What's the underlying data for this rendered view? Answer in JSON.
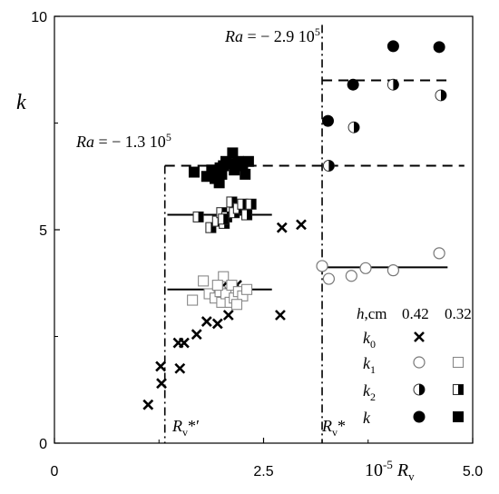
{
  "chart_data": {
    "type": "scatter",
    "title": "",
    "xlabel": {
      "prefix": "10",
      "exponent": "-5",
      "symbol": "R",
      "subscript": "v"
    },
    "ylabel": "k",
    "xlim": [
      0,
      5.0
    ],
    "ylim": [
      0,
      10
    ],
    "x_ticks": [
      {
        "value": 0,
        "label": "0"
      },
      {
        "value": 2.5,
        "label": "2.5"
      },
      {
        "value": 5.0,
        "label": "5.0"
      }
    ],
    "y_ticks": [
      {
        "value": 0,
        "label": "0"
      },
      {
        "value": 5,
        "label": "5"
      },
      {
        "value": 10,
        "label": "10"
      }
    ],
    "grid": false,
    "annotations": {
      "ra_left": {
        "prefix": "Ra",
        "text": " = − 1.3 10",
        "exponent": "5"
      },
      "ra_right": {
        "prefix": "Ra",
        "text": " = − 2.9 10",
        "exponent": "5"
      },
      "rv_left": {
        "symbol": "R",
        "subscript": "v",
        "suffix": "*′"
      },
      "rv_right": {
        "symbol": "R",
        "subscript": "v",
        "suffix": "*"
      }
    },
    "vertical_lines": [
      {
        "name": "Rv*'",
        "x": 1.32
      },
      {
        "name": "Rv*",
        "x": 3.2
      }
    ],
    "dashed_lines": [
      {
        "x": [
          1.32,
          4.9
        ],
        "y": 6.5
      },
      {
        "x": [
          3.2,
          4.7
        ],
        "y": 8.5
      }
    ],
    "solid_lines": [
      {
        "x": [
          1.35,
          2.6
        ],
        "y": 3.6
      },
      {
        "x": [
          1.35,
          2.6
        ],
        "y": 5.35
      },
      {
        "x": [
          3.2,
          4.7
        ],
        "y": 4.12
      }
    ],
    "legend": {
      "placement": "bottom-right",
      "header": {
        "symbol": "h",
        "unit": ",cm",
        "col1": "0.42",
        "col2": "0.32"
      },
      "rows": [
        {
          "symbol": "k",
          "subscript": "0",
          "marker1": "x",
          "marker2": ""
        },
        {
          "symbol": "k",
          "subscript": "1",
          "marker1": "circle-open",
          "marker2": "square-open"
        },
        {
          "symbol": "k",
          "subscript": "2",
          "marker1": "circle-half",
          "marker2": "square-half"
        },
        {
          "symbol": "k",
          "subscript": "",
          "marker1": "circle-filled",
          "marker2": "square-filled"
        }
      ]
    },
    "series": [
      {
        "name": "k0 h=0.42",
        "marker": "x",
        "points": [
          [
            1.12,
            0.9
          ],
          [
            1.28,
            1.4
          ],
          [
            1.27,
            1.8
          ],
          [
            1.5,
            1.75
          ],
          [
            1.48,
            2.35
          ],
          [
            1.55,
            2.35
          ],
          [
            1.7,
            2.55
          ],
          [
            1.82,
            2.85
          ],
          [
            1.95,
            2.8
          ],
          [
            2.08,
            3.0
          ],
          [
            2.0,
            3.65
          ],
          [
            2.08,
            3.55
          ],
          [
            2.18,
            3.7
          ],
          [
            2.7,
            3.0
          ],
          [
            2.72,
            5.05
          ],
          [
            2.95,
            5.12
          ]
        ]
      },
      {
        "name": "k1 h=0.32",
        "marker": "square-open",
        "points": [
          [
            1.65,
            3.35
          ],
          [
            1.78,
            3.8
          ],
          [
            1.85,
            3.5
          ],
          [
            1.92,
            3.4
          ],
          [
            1.98,
            3.55
          ],
          [
            2.0,
            3.3
          ],
          [
            2.02,
            3.9
          ],
          [
            2.05,
            3.5
          ],
          [
            2.1,
            3.3
          ],
          [
            2.12,
            3.7
          ],
          [
            2.15,
            3.4
          ],
          [
            2.2,
            3.55
          ],
          [
            2.25,
            3.45
          ],
          [
            2.3,
            3.6
          ],
          [
            1.95,
            3.7
          ],
          [
            2.18,
            3.25
          ]
        ]
      },
      {
        "name": "k2 h=0.32",
        "marker": "square-half",
        "points": [
          [
            1.72,
            5.3
          ],
          [
            1.87,
            5.05
          ],
          [
            1.95,
            5.2
          ],
          [
            2.0,
            5.4
          ],
          [
            2.03,
            5.15
          ],
          [
            2.06,
            5.3
          ],
          [
            2.12,
            5.65
          ],
          [
            2.15,
            5.4
          ],
          [
            2.2,
            5.5
          ],
          [
            2.25,
            5.6
          ],
          [
            2.3,
            5.35
          ],
          [
            2.35,
            5.6
          ],
          [
            2.02,
            5.25
          ]
        ]
      },
      {
        "name": "k h=0.32",
        "marker": "square-filled",
        "points": [
          [
            1.67,
            6.35
          ],
          [
            1.82,
            6.25
          ],
          [
            1.88,
            6.4
          ],
          [
            1.92,
            6.2
          ],
          [
            1.97,
            6.1
          ],
          [
            2.0,
            6.3
          ],
          [
            2.02,
            6.5
          ],
          [
            2.05,
            6.6
          ],
          [
            2.1,
            6.55
          ],
          [
            2.13,
            6.8
          ],
          [
            2.15,
            6.4
          ],
          [
            2.2,
            6.6
          ],
          [
            2.25,
            6.5
          ],
          [
            2.28,
            6.3
          ],
          [
            2.32,
            6.6
          ],
          [
            1.98,
            6.45
          ]
        ]
      },
      {
        "name": "k1 h=0.42",
        "marker": "circle-open",
        "points": [
          [
            3.2,
            4.15
          ],
          [
            3.28,
            3.85
          ],
          [
            3.55,
            3.92
          ],
          [
            3.72,
            4.1
          ],
          [
            4.05,
            4.05
          ],
          [
            4.6,
            4.45
          ]
        ]
      },
      {
        "name": "k2 h=0.42",
        "marker": "circle-half",
        "points": [
          [
            3.28,
            6.5
          ],
          [
            3.58,
            7.4
          ],
          [
            4.05,
            8.4
          ],
          [
            4.62,
            8.15
          ]
        ]
      },
      {
        "name": "k h=0.42",
        "marker": "circle-filled",
        "points": [
          [
            3.27,
            7.55
          ],
          [
            3.57,
            8.4
          ],
          [
            4.05,
            9.3
          ],
          [
            4.6,
            9.28
          ]
        ]
      }
    ]
  }
}
